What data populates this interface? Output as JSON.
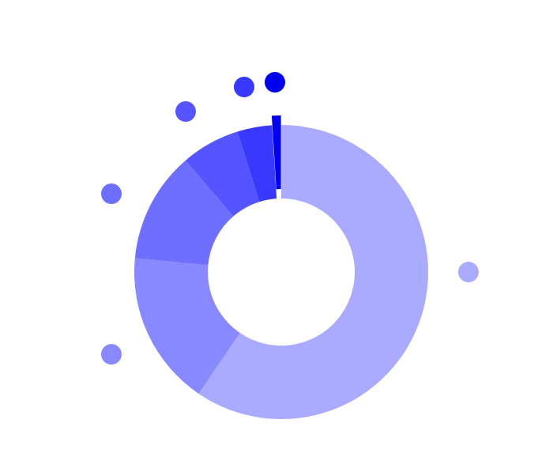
{
  "chart_data": {
    "type": "pie",
    "variant": "donut",
    "legend": "none",
    "title": "",
    "slices": [
      {
        "value": 59.5,
        "color": "#aaaaff"
      },
      {
        "value": 17.0,
        "color": "#8888ff"
      },
      {
        "value": 12.2,
        "color": "#6f6fff"
      },
      {
        "value": 6.5,
        "color": "#5555ff"
      },
      {
        "value": 3.8,
        "color": "#3838ff"
      },
      {
        "value": 1.0,
        "color": "#0000ee",
        "exploded": true
      }
    ]
  }
}
